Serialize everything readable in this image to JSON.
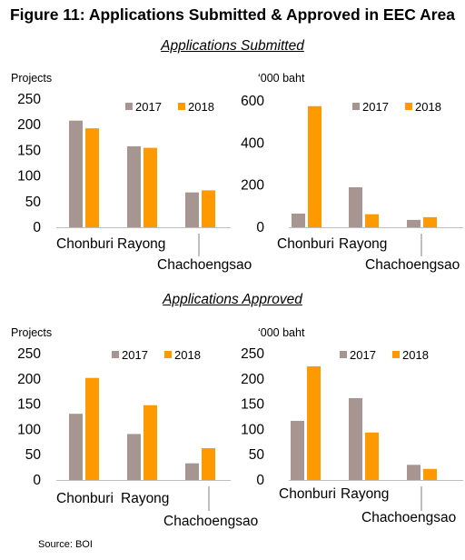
{
  "figure_title": "Figure 11: Applications Submitted & Approved in EEC Area",
  "sections": {
    "submitted": "Applications Submitted",
    "approved": "Applications Approved"
  },
  "source": "Source: BOI",
  "colors": {
    "2017": "#a79592",
    "2018": "#ff9900",
    "axis": "#bfbfbf"
  },
  "chart_data": [
    {
      "type": "bar",
      "section": "Applications Submitted",
      "ylabel": "Projects",
      "ylim": [
        0,
        250
      ],
      "yticks": [
        0,
        50,
        100,
        150,
        200,
        250
      ],
      "categories": [
        "Chonburi",
        "Rayong",
        "Chachoengsao"
      ],
      "series": [
        {
          "name": "2017",
          "values": [
            208,
            158,
            68
          ]
        },
        {
          "name": "2018",
          "values": [
            193,
            155,
            72
          ]
        }
      ],
      "legend": "top-right"
    },
    {
      "type": "bar",
      "section": "Applications Submitted",
      "ylabel": "‘000 baht",
      "ylim": [
        0,
        600
      ],
      "yticks": [
        0,
        200,
        400,
        600
      ],
      "categories": [
        "Chonburi",
        "Rayong",
        "Chachoengsao"
      ],
      "series": [
        {
          "name": "2017",
          "values": [
            65,
            190,
            35
          ]
        },
        {
          "name": "2018",
          "values": [
            575,
            62,
            48
          ]
        }
      ],
      "legend": "top-right"
    },
    {
      "type": "bar",
      "section": "Applications Approved",
      "ylabel": "Projects",
      "ylim": [
        0,
        250
      ],
      "yticks": [
        0,
        50,
        100,
        150,
        200,
        250
      ],
      "categories": [
        "Chonburi",
        "Rayong",
        "Chachoengsao"
      ],
      "series": [
        {
          "name": "2017",
          "values": [
            131,
            91,
            33
          ]
        },
        {
          "name": "2018",
          "values": [
            202,
            148,
            63
          ]
        }
      ],
      "legend": "top-right"
    },
    {
      "type": "bar",
      "section": "Applications Approved",
      "ylabel": "‘000 baht",
      "ylim": [
        0,
        250
      ],
      "yticks": [
        0,
        50,
        100,
        150,
        200,
        250
      ],
      "categories": [
        "Chonburi",
        "Rayong",
        "Chachoengsao"
      ],
      "series": [
        {
          "name": "2017",
          "values": [
            117,
            162,
            30
          ]
        },
        {
          "name": "2018",
          "values": [
            225,
            94,
            22
          ]
        }
      ],
      "legend": "top-right"
    }
  ]
}
